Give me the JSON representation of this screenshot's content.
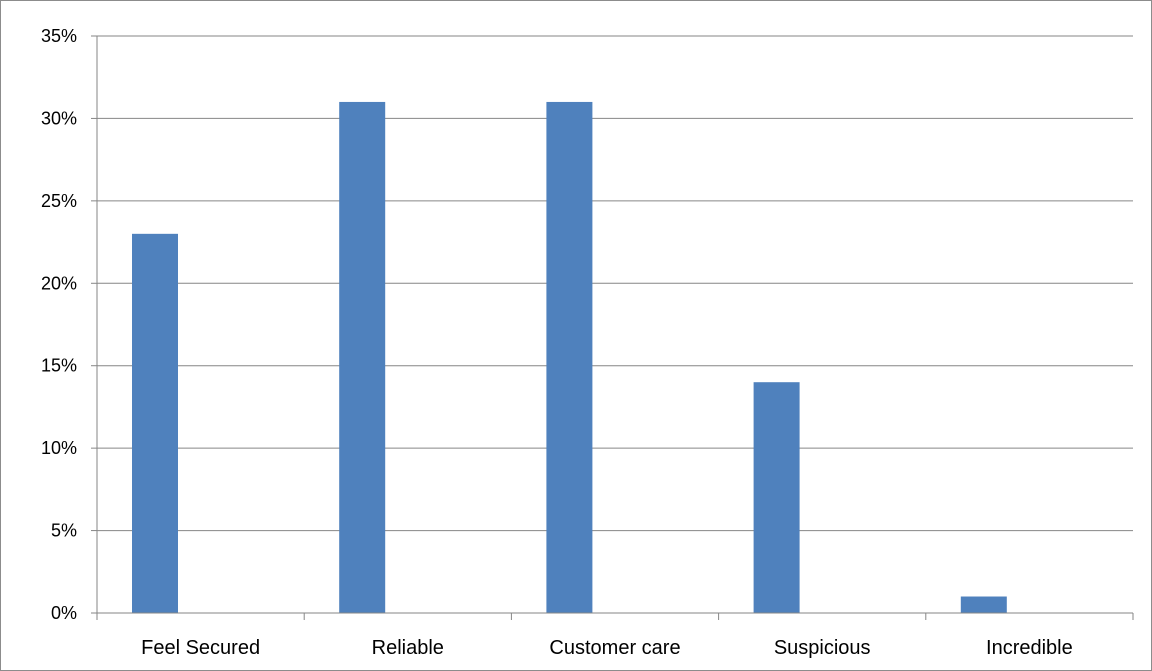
{
  "chart_data": {
    "type": "bar",
    "categories": [
      "Feel Secured",
      "Reliable",
      "Customer care",
      "Suspicious",
      "Incredible"
    ],
    "values": [
      23,
      31,
      31,
      14,
      1
    ],
    "y_tick_labels": [
      "0%",
      "5%",
      "10%",
      "15%",
      "20%",
      "25%",
      "30%",
      "35%"
    ],
    "ylim": [
      0,
      35
    ],
    "y_tick_step": 5,
    "grid": true,
    "legend": "none",
    "title": "",
    "xlabel": "",
    "ylabel": "",
    "colors": {
      "bar": "#4F81BD",
      "grid": "#868686",
      "axis": "#868686",
      "frame": "#8c8c8c"
    }
  }
}
